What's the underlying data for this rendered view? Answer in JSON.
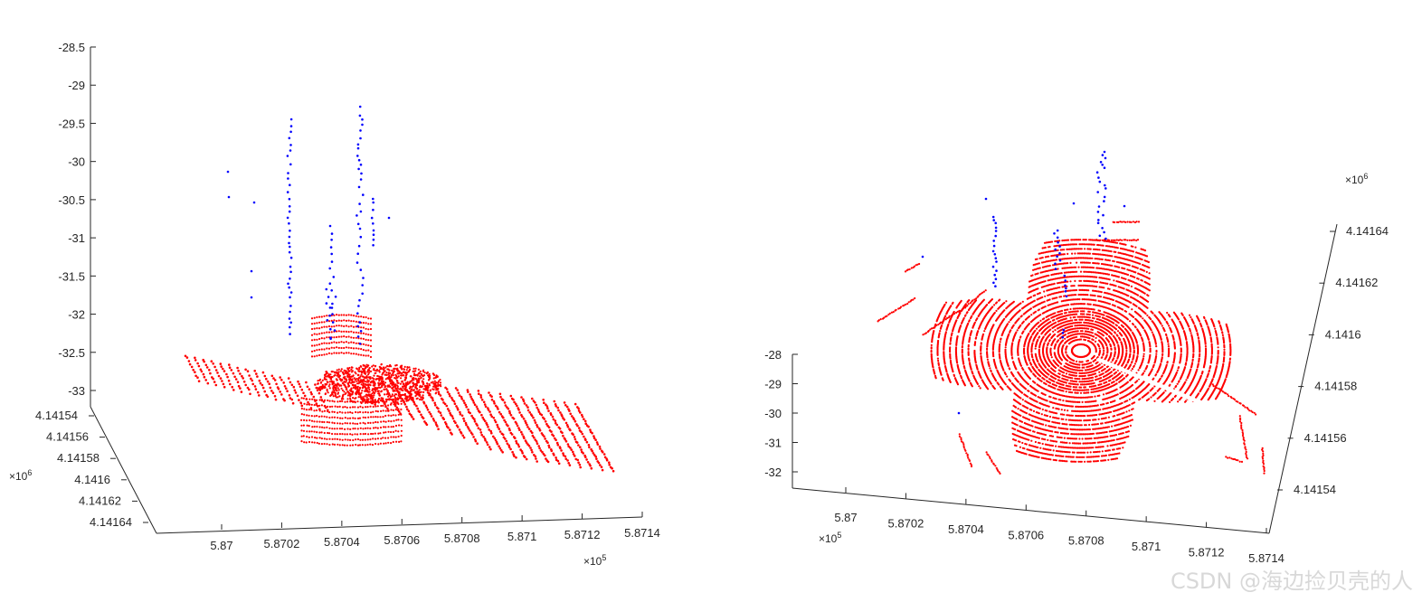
{
  "colors": {
    "ground": "#ff0000",
    "objects": "#0000ff",
    "axis": "#262626"
  },
  "watermark": "CSDN @海边捡贝壳的人",
  "chart_data": [
    {
      "type": "scatter",
      "view": "oblique 3-D view",
      "series": [
        {
          "color": "#ff0000"
        },
        {
          "color": "#0000ff"
        }
      ],
      "axes": {
        "x": {
          "ticks": [
            "5.87",
            "5.8702",
            "5.8704",
            "5.8706",
            "5.8708",
            "5.871",
            "5.8712",
            "5.8714"
          ],
          "multiplier": "×10",
          "multiplier_exp": "5"
        },
        "y": {
          "ticks": [
            "4.14154",
            "4.14156",
            "4.14158",
            "4.1416",
            "4.14162",
            "4.14164"
          ],
          "multiplier": "×10",
          "multiplier_exp": "6"
        },
        "z": {
          "ticks": [
            "-28.5",
            "-29",
            "-29.5",
            "-30",
            "-30.5",
            "-31",
            "-31.5",
            "-32",
            "-32.5",
            "-33"
          ]
        }
      }
    },
    {
      "type": "scatter",
      "view": "top-down 3-D view",
      "series": [
        {
          "color": "#ff0000"
        },
        {
          "color": "#0000ff"
        }
      ],
      "axes": {
        "x": {
          "ticks": [
            "5.87",
            "5.8702",
            "5.8704",
            "5.8706",
            "5.8708",
            "5.871",
            "5.8712",
            "5.8714"
          ],
          "multiplier": "×10",
          "multiplier_exp": "5"
        },
        "y": {
          "ticks": [
            "4.14154",
            "4.14156",
            "4.14158",
            "4.1416",
            "4.14162",
            "4.14164"
          ],
          "multiplier": "×10",
          "multiplier_exp": "6"
        },
        "z": {
          "ticks": [
            "-28",
            "-29",
            "-30",
            "-31",
            "-32"
          ]
        }
      }
    }
  ]
}
